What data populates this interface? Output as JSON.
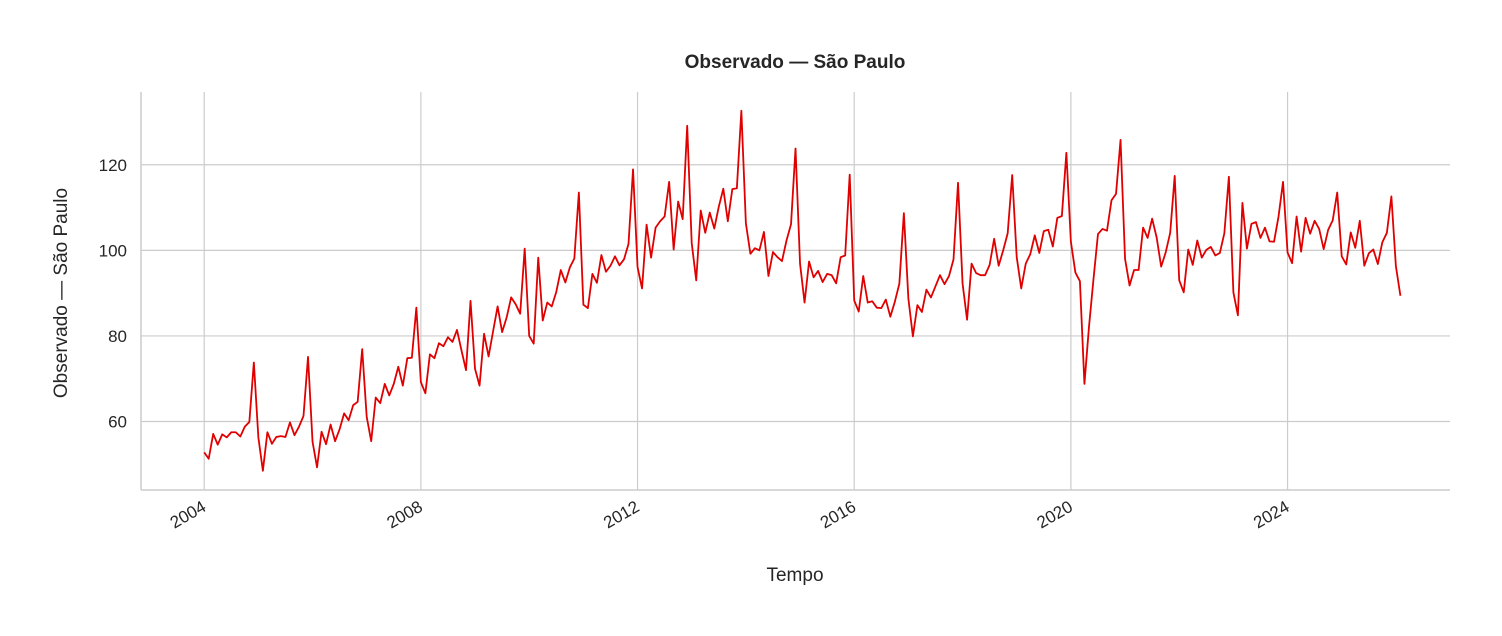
{
  "chart_data": {
    "type": "line",
    "title": "Observado — São Paulo",
    "xlabel": "Tempo",
    "ylabel": "Observado — São Paulo",
    "x_ticks": [
      "2004",
      "2008",
      "2012",
      "2016",
      "2020",
      "2024"
    ],
    "y_ticks": [
      60,
      80,
      100,
      120
    ],
    "xlim": [
      "2002-11-01",
      "2026-12-31"
    ],
    "ylim": [
      44,
      137
    ],
    "grid": true,
    "series_color": "#e00000",
    "series": [
      {
        "start": "2004-01",
        "frequency": "monthly",
        "values": [
          52.8,
          51.3,
          57.1,
          54.6,
          57.0,
          56.3,
          57.5,
          57.5,
          56.5,
          58.8,
          59.9,
          73.8,
          56.3,
          48.5,
          57.5,
          54.8,
          56.4,
          56.6,
          56.4,
          59.8,
          56.8,
          58.8,
          61.3,
          75.1,
          55.3,
          49.3,
          57.6,
          54.7,
          59.3,
          55.4,
          58.2,
          61.9,
          60.3,
          63.8,
          64.6,
          76.9,
          61.1,
          55.4,
          65.6,
          64.3,
          68.8,
          66.1,
          68.8,
          72.8,
          68.4,
          74.8,
          74.9,
          86.6,
          69.2,
          66.6,
          75.7,
          74.8,
          78.3,
          77.6,
          79.7,
          78.6,
          81.4,
          76.6,
          72.0,
          88.2,
          72.3,
          68.4,
          80.5,
          75.2,
          81.1,
          86.9,
          80.9,
          84.3,
          89.0,
          87.4,
          85.2,
          100.4,
          80.0,
          78.2,
          98.3,
          83.6,
          87.8,
          86.9,
          90.3,
          95.4,
          92.5,
          96.0,
          98.1,
          113.5,
          87.3,
          86.5,
          94.5,
          92.4,
          98.9,
          95.0,
          96.4,
          98.6,
          96.5,
          97.9,
          101.5,
          118.9,
          96.1,
          91.1,
          106.0,
          98.3,
          105.3,
          106.8,
          107.9,
          116.0,
          100.2,
          111.4,
          107.3,
          129.1,
          101.7,
          93.0,
          109.3,
          104.1,
          108.8,
          105.1,
          110.2,
          114.4,
          106.8,
          114.3,
          114.5,
          132.6,
          106.3,
          99.2,
          100.5,
          100.0,
          104.3,
          94.0,
          99.6,
          98.4,
          97.5,
          102.3,
          106.1,
          123.8,
          96.9,
          87.8,
          97.4,
          93.7,
          95.2,
          92.6,
          94.5,
          94.2,
          92.3,
          98.4,
          98.8,
          117.7,
          88.3,
          85.7,
          94.0,
          87.8,
          88.1,
          86.6,
          86.5,
          88.5,
          84.5,
          88.0,
          92.2,
          108.7,
          88.7,
          79.9,
          87.2,
          85.6,
          90.8,
          89.0,
          91.6,
          94.2,
          92.1,
          94.0,
          97.9,
          115.8,
          92.3,
          83.8,
          96.9,
          94.7,
          94.2,
          94.2,
          96.6,
          102.7,
          96.4,
          100.0,
          104.0,
          117.6,
          98.4,
          91.1,
          96.9,
          99.1,
          103.5,
          99.4,
          104.5,
          104.8,
          100.9,
          107.6,
          108.0,
          122.8,
          102.0,
          94.8,
          92.8,
          68.8,
          82.0,
          93.2,
          103.8,
          105.0,
          104.6,
          111.7,
          113.2,
          125.8,
          98.0,
          91.8,
          95.4,
          95.4,
          105.3,
          102.9,
          107.4,
          103.0,
          96.2,
          99.5,
          104.1,
          117.4,
          93.0,
          90.2,
          100.2,
          96.6,
          102.3,
          98.3,
          100.1,
          100.8,
          98.8,
          99.4,
          104.0,
          117.2,
          90.2,
          84.8,
          111.1,
          100.4,
          106.2,
          106.6,
          102.9,
          105.3,
          102.1,
          102.0,
          107.9,
          116.0,
          99.5,
          97.0,
          107.9,
          99.7,
          107.6,
          103.9,
          106.9,
          105.0,
          100.3,
          104.8,
          107.0,
          113.5,
          98.6,
          96.7,
          104.2,
          100.6,
          106.9,
          96.4,
          99.3,
          100.2,
          96.8,
          101.9,
          104.1,
          112.6,
          96.3,
          89.4
        ]
      }
    ]
  }
}
